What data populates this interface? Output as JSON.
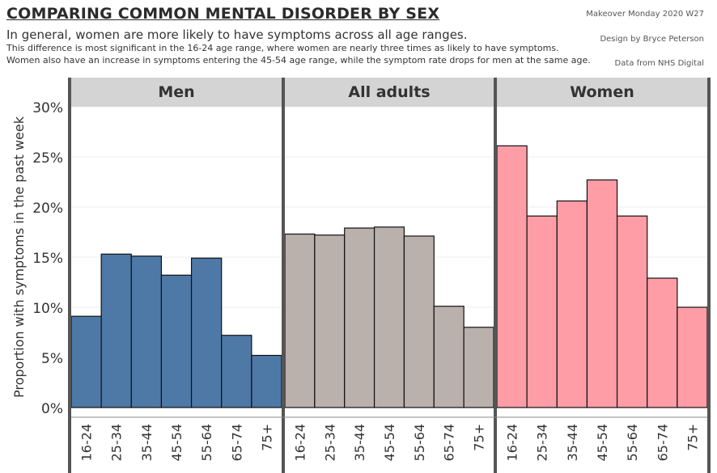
{
  "header": {
    "title": "COMPARING COMMON MENTAL DISORDER BY SEX",
    "subtitle": "In general, women are more likely to have symptoms across all age ranges.",
    "note_1": "This difference is most significant in the 16-24 age range, where women are nearly three times as likely to have symptoms.",
    "note_2": "Women also have an increase in symptoms entering the 45-54 age range, while the symptom rate drops for men at the same age.",
    "credit_1": "Makeover Monday 2020 W27",
    "credit_2": "Design by Bryce Peterson",
    "credit_3": "Data from NHS Digital"
  },
  "colors": {
    "men": "#4e79a7",
    "all_adults": "#bab0ac",
    "women": "#ff9da7",
    "panel_header_bg": "#d4d4d4",
    "divider": "#555555"
  },
  "chart_data": {
    "type": "bar",
    "ylabel": "Proportion with symptoms in the past week",
    "ylim": [
      0,
      30
    ],
    "yticks": [
      "0%",
      "5%",
      "10%",
      "15%",
      "20%",
      "25%",
      "30%"
    ],
    "ytick_values": [
      0,
      5,
      10,
      15,
      20,
      25,
      30
    ],
    "categories": [
      "16-24",
      "25-34",
      "35-44",
      "45-54",
      "55-64",
      "65-74",
      "75+"
    ],
    "grid": true,
    "panels": [
      {
        "name": "Men",
        "color": "#4e79a7",
        "values": [
          9.1,
          15.3,
          15.1,
          13.2,
          14.9,
          7.2,
          5.2
        ]
      },
      {
        "name": "All adults",
        "color": "#bab0ac",
        "values": [
          17.3,
          17.2,
          17.9,
          18.0,
          17.1,
          10.1,
          8.0
        ]
      },
      {
        "name": "Women",
        "color": "#ff9da7",
        "values": [
          26.1,
          19.1,
          20.6,
          22.7,
          19.1,
          12.9,
          10.0
        ]
      }
    ]
  }
}
